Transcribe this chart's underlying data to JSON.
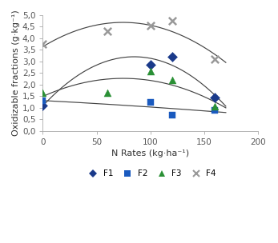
{
  "title": "",
  "xlabel": "N Rates (kg·ha⁻¹)",
  "ylabel": "Oxidizable fractions (g·kg⁻¹)",
  "xlim": [
    0,
    200
  ],
  "ylim": [
    0.0,
    5.0
  ],
  "xticks": [
    0,
    50,
    100,
    150,
    200
  ],
  "yticks": [
    0.0,
    0.5,
    1.0,
    1.5,
    2.0,
    2.5,
    3.0,
    3.5,
    4.0,
    4.5,
    5.0
  ],
  "F1": {
    "x": [
      0,
      100,
      120,
      160
    ],
    "y": [
      1.1,
      2.85,
      3.2,
      1.45
    ],
    "color": "#1a3a8a",
    "marker": "D"
  },
  "F2": {
    "x": [
      0,
      100,
      120,
      160
    ],
    "y": [
      1.3,
      1.25,
      0.7,
      0.9
    ],
    "color": "#1a5abf",
    "marker": "s"
  },
  "F3": {
    "x": [
      0,
      60,
      100,
      120,
      160
    ],
    "y": [
      1.65,
      1.65,
      2.6,
      2.2,
      1.05
    ],
    "color": "#2a9035",
    "marker": "^"
  },
  "F4": {
    "x": [
      0,
      60,
      100,
      120,
      160
    ],
    "y": [
      3.75,
      4.3,
      4.55,
      4.75,
      3.1
    ],
    "color": "#999999",
    "marker": "x"
  },
  "background": "#ffffff",
  "curve_color": "#444444"
}
